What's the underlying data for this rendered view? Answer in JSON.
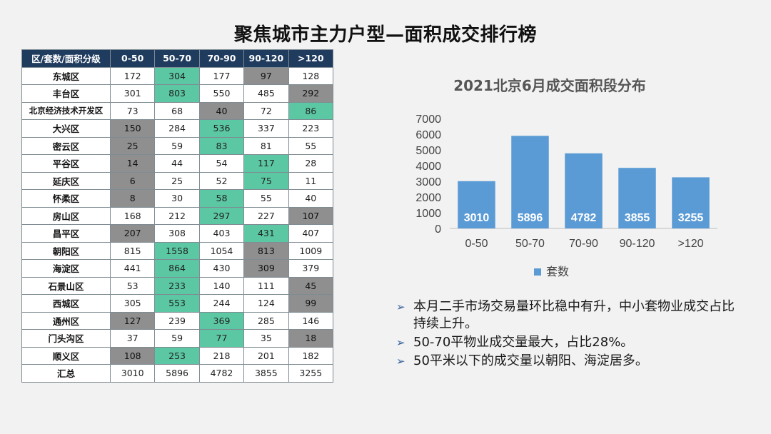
{
  "title": "聚焦城市主力户型—面积成交排行榜",
  "table": {
    "headers": [
      "区/套数/面积分级",
      "0-50",
      "50-70",
      "70-90",
      "90-120",
      ">120"
    ],
    "rows": [
      {
        "name": "东城区",
        "values": [
          "172",
          "304",
          "177",
          "97",
          "128"
        ],
        "hl": [
          "",
          "g",
          "",
          "x",
          ""
        ]
      },
      {
        "name": "丰台区",
        "values": [
          "301",
          "803",
          "550",
          "485",
          "292"
        ],
        "hl": [
          "",
          "g",
          "",
          "",
          "x"
        ]
      },
      {
        "name": "北京经济技术开发区",
        "values": [
          "73",
          "68",
          "40",
          "72",
          "86"
        ],
        "hl": [
          "",
          "",
          "x",
          "",
          "g"
        ]
      },
      {
        "name": "大兴区",
        "values": [
          "150",
          "284",
          "536",
          "337",
          "223"
        ],
        "hl": [
          "x",
          "",
          "g",
          "",
          ""
        ]
      },
      {
        "name": "密云区",
        "values": [
          "25",
          "59",
          "83",
          "81",
          "55"
        ],
        "hl": [
          "x",
          "",
          "g",
          "",
          ""
        ]
      },
      {
        "name": "平谷区",
        "values": [
          "14",
          "44",
          "54",
          "117",
          "28"
        ],
        "hl": [
          "x",
          "",
          "",
          "g",
          ""
        ]
      },
      {
        "name": "延庆区",
        "values": [
          "6",
          "25",
          "52",
          "75",
          "11"
        ],
        "hl": [
          "x",
          "",
          "",
          "g",
          ""
        ]
      },
      {
        "name": "怀柔区",
        "values": [
          "8",
          "30",
          "58",
          "55",
          "40"
        ],
        "hl": [
          "x",
          "",
          "g",
          "",
          ""
        ]
      },
      {
        "name": "房山区",
        "values": [
          "168",
          "212",
          "297",
          "227",
          "107"
        ],
        "hl": [
          "",
          "",
          "g",
          "",
          "x"
        ]
      },
      {
        "name": "昌平区",
        "values": [
          "207",
          "308",
          "403",
          "431",
          "407"
        ],
        "hl": [
          "x",
          "",
          "",
          "g",
          ""
        ]
      },
      {
        "name": "朝阳区",
        "values": [
          "815",
          "1558",
          "1054",
          "813",
          "1009"
        ],
        "hl": [
          "",
          "g",
          "",
          "x",
          ""
        ]
      },
      {
        "name": "海淀区",
        "values": [
          "441",
          "864",
          "430",
          "309",
          "379"
        ],
        "hl": [
          "",
          "g",
          "",
          "x",
          ""
        ]
      },
      {
        "name": "石景山区",
        "values": [
          "53",
          "233",
          "140",
          "111",
          "45"
        ],
        "hl": [
          "",
          "g",
          "",
          "",
          "x"
        ]
      },
      {
        "name": "西城区",
        "values": [
          "305",
          "553",
          "244",
          "124",
          "99"
        ],
        "hl": [
          "",
          "g",
          "",
          "",
          "x"
        ]
      },
      {
        "name": "通州区",
        "values": [
          "127",
          "239",
          "369",
          "285",
          "146"
        ],
        "hl": [
          "x",
          "",
          "g",
          "",
          ""
        ]
      },
      {
        "name": "门头沟区",
        "values": [
          "37",
          "59",
          "77",
          "35",
          "18"
        ],
        "hl": [
          "",
          "",
          "g",
          "",
          "x"
        ]
      },
      {
        "name": "顺义区",
        "values": [
          "108",
          "253",
          "218",
          "201",
          "182"
        ],
        "hl": [
          "x",
          "g",
          "",
          "",
          ""
        ]
      },
      {
        "name": "汇总",
        "values": [
          "3010",
          "5896",
          "4782",
          "3855",
          "3255"
        ],
        "hl": [
          "",
          "",
          "",
          "",
          ""
        ]
      }
    ]
  },
  "colors": {
    "highlight_max": "#5bc8a3",
    "highlight_min": "#8f8f8f",
    "bar": "#5b9bd5",
    "header": "#1f3b5e"
  },
  "chart_data": {
    "type": "bar",
    "title": "2021北京6月成交面积段分布",
    "categories": [
      "0-50",
      "50-70",
      "70-90",
      "90-120",
      ">120"
    ],
    "series": [
      {
        "name": "套数",
        "values": [
          3010,
          5896,
          4782,
          3855,
          3255
        ]
      }
    ],
    "ylim": [
      0,
      7000
    ],
    "yticks": [
      0,
      1000,
      2000,
      3000,
      4000,
      5000,
      6000,
      7000
    ],
    "data_labels": true,
    "grid": false,
    "legend_position": "bottom"
  },
  "notes": [
    "本月二手市场交易量环比稳中有升，中小套物业成交占比持续上升。",
    "50-70平物业成交量最大，占比28%。",
    "50平米以下的成交量以朝阳、海淀居多。"
  ],
  "note_marker": "➢"
}
